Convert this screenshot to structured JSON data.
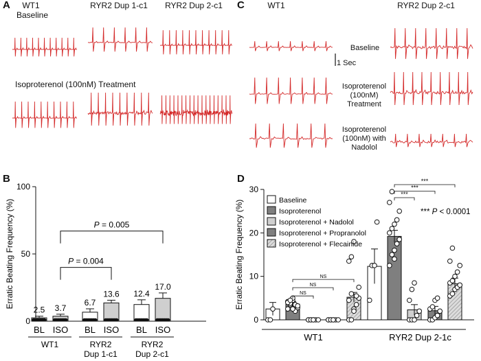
{
  "panels": {
    "A": {
      "label": "A",
      "col1_title": "WT1",
      "col1_subtitle": "Baseline",
      "col2_title": "RYR2 Dup 1-c1",
      "col3_title": "RYR2 Dup 2-c1",
      "row2_title": "Isoproterenol (100nM) Treatment"
    },
    "C": {
      "label": "C",
      "col1_title": "WT1",
      "col2_title": "RYR2 Dup 2-c1",
      "scale_label": "1 Sec",
      "row_labels": [
        "Baseline",
        "Isoproterenol\n(100nM)\nTreatment",
        "Isoproterenol\n(100nM) with\nNadolol"
      ]
    },
    "B": {
      "label": "B"
    },
    "D": {
      "label": "D"
    }
  },
  "colors": {
    "trace": "#d42a2a",
    "bar_white": "#ffffff",
    "bar_light": "#cfcfcf",
    "bar_dark": "#7f7f7f"
  },
  "chart_data": [
    {
      "id": "B",
      "type": "bar",
      "ylabel": "Erratic Beating Frequency (%)",
      "ylim": [
        0,
        100
      ],
      "yticks": [
        0,
        50,
        100
      ],
      "categories": [
        "BL",
        "ISO",
        "BL",
        "ISO",
        "BL",
        "ISO"
      ],
      "groups": [
        {
          "name": "WT1",
          "span": [
            0,
            1
          ]
        },
        {
          "name": "RYR2\nDup 1-c1",
          "span": [
            2,
            3
          ]
        },
        {
          "name": "RYR2\nDup 2-c1",
          "span": [
            4,
            5
          ]
        }
      ],
      "values": [
        2.5,
        3.7,
        6.7,
        13.6,
        12.4,
        17.0
      ],
      "errors": [
        1.2,
        1.5,
        2.5,
        2.0,
        3.5,
        4.0
      ],
      "value_labels": [
        "2.5",
        "3.7",
        "6.7",
        "13.6",
        "12.4",
        "17.0"
      ],
      "fills": [
        "white",
        "light",
        "white",
        "light",
        "white",
        "light"
      ],
      "brackets": [
        {
          "from": 1,
          "to": 3,
          "label": "P = 0.004",
          "y": 40
        },
        {
          "from": 1,
          "to": 5,
          "label": "P = 0.005",
          "y": 67
        }
      ]
    },
    {
      "id": "D",
      "type": "bar",
      "ylabel": "Erratic Beating Frequency (%)",
      "ylim": [
        0,
        30
      ],
      "yticks": [
        0,
        10,
        20,
        30
      ],
      "legend": [
        "Baseline",
        "Isoproterenol",
        "Isoproterenol + Nadolol",
        "Isoproterenol + Propranolol",
        "Isoproterenol + Flecainide"
      ],
      "legend_position": "top-left",
      "groups": [
        {
          "name": "WT1",
          "values": [
            2.5,
            3.6,
            0.0,
            0.0,
            5.2
          ],
          "errors": [
            1.5,
            0.6,
            0.2,
            0.2,
            1.1
          ],
          "points": [
            [
              0,
              0,
              2.5
            ],
            [
              2.5,
              3.5,
              4.5,
              3.5,
              2.8,
              4.2,
              3.8,
              5.0,
              2.0,
              3.2,
              4.0,
              4.5,
              2.5
            ],
            [
              0,
              0,
              0,
              0,
              0,
              0,
              0,
              0
            ],
            [
              0,
              0,
              0,
              0,
              0,
              0,
              0,
              0
            ],
            [
              0,
              0,
              2.5,
              3.5,
              5.0,
              4.5,
              6.0,
              2.0,
              5.5,
              7.5,
              13.5,
              14.5,
              18
            ]
          ]
        },
        {
          "name": "RYR2 Dup 2-1c",
          "values": [
            12.3,
            19.2,
            2.3,
            2.1,
            8.3
          ],
          "errors": [
            4.0,
            1.4,
            1.2,
            1.0,
            1.3
          ],
          "points": [
            [
              4.5,
              12.5,
              12.5,
              22.5
            ],
            [
              12.5,
              15.0,
              16.0,
              17.5,
              18.5,
              20.0,
              21.0,
              22.0,
              23.0,
              25.0,
              27.0,
              29.5,
              14.0
            ],
            [
              0,
              0,
              0,
              1.0,
              2.0,
              4.5,
              7.0,
              8.5
            ],
            [
              0,
              0,
              0.5,
              1.0,
              2.0,
              2.5,
              3.0,
              4.5,
              5.0
            ],
            [
              5.5,
              6.0,
              7.0,
              7.5,
              8.0,
              8.5,
              9.0,
              10.0,
              11.0,
              12.5,
              13.5,
              16.5
            ]
          ]
        }
      ],
      "fills": [
        "white",
        "dark",
        "light",
        "dark",
        "hatch"
      ],
      "brackets": [
        {
          "group": 0,
          "from": 1,
          "to": 2,
          "label": "NS",
          "y": 5.5
        },
        {
          "group": 0,
          "from": 1,
          "to": 3,
          "label": "NS",
          "y": 7.4
        },
        {
          "group": 0,
          "from": 1,
          "to": 4,
          "label": "NS",
          "y": 9.3
        },
        {
          "group": 1,
          "from": 1,
          "to": 2,
          "label": "***",
          "y": 28.1
        },
        {
          "group": 1,
          "from": 1,
          "to": 3,
          "label": "***",
          "y": 29.6
        },
        {
          "group": 1,
          "from": 1,
          "to": 4,
          "label": "***",
          "y": 31.1
        }
      ],
      "annotation": "*** P < 0.0001"
    }
  ]
}
